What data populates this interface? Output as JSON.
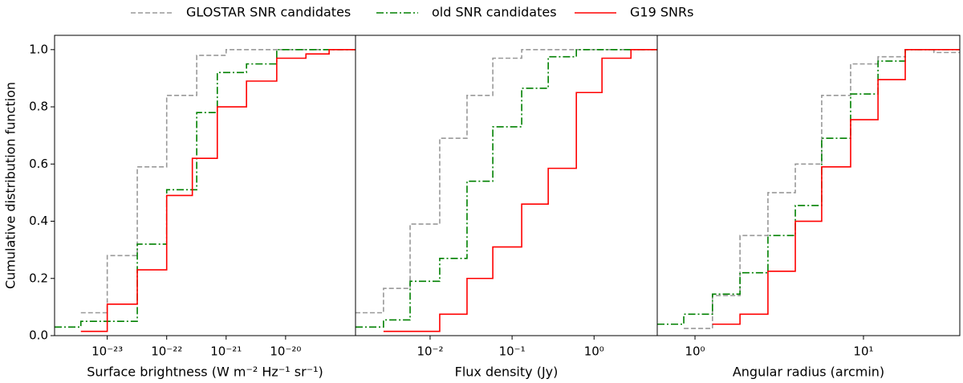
{
  "legend_loc": "upper center",
  "chart_data": [
    {
      "type": "step",
      "xscale": "log",
      "xlabel": "Surface brightness (W m⁻² Hz⁻¹ sr⁻¹)",
      "ylabel": "Cumulative distribution function",
      "xlim": [
        1.3e-24,
        1.5e-19
      ],
      "ylim": [
        0,
        1.05
      ],
      "xticks": [
        {
          "value": 1e-23,
          "label": "10⁻²³"
        },
        {
          "value": 1e-22,
          "label": "10⁻²²"
        },
        {
          "value": 1e-21,
          "label": "10⁻²¹"
        },
        {
          "value": 1e-20,
          "label": "10⁻²⁰"
        }
      ],
      "yticks": [
        {
          "value": 0,
          "label": "0.0"
        },
        0.2,
        0.4,
        0.6,
        0.8,
        {
          "value": 1,
          "label": "1.0"
        }
      ],
      "series": [
        {
          "name": "GLOSTAR SNR candidates",
          "color": "#999999",
          "linestyle": "dashed",
          "x": [
            3.6e-24,
            1e-23,
            3.2e-23,
            1e-22,
            3.2e-22,
            1e-21
          ],
          "values": [
            0.08,
            0.28,
            0.59,
            0.84,
            0.98,
            1.0
          ]
        },
        {
          "name": "old SNR candidates",
          "color": "#008000",
          "linestyle": "dashdot",
          "x": [
            1.3e-24,
            3.6e-24,
            3.2e-23,
            1e-22,
            3.2e-22,
            7.1e-22,
            2.2e-21,
            7.1e-21
          ],
          "values": [
            0.03,
            0.05,
            0.32,
            0.51,
            0.78,
            0.92,
            0.95,
            1.0
          ]
        },
        {
          "name": "G19 SNRs",
          "color": "#ff0000",
          "linestyle": "solid",
          "x": [
            3.6e-24,
            1e-23,
            3.2e-23,
            1e-22,
            2.7e-22,
            7.1e-22,
            2.2e-21,
            7.1e-21,
            2.2e-20,
            5.4e-20
          ],
          "values": [
            0.015,
            0.11,
            0.23,
            0.49,
            0.62,
            0.8,
            0.89,
            0.97,
            0.985,
            1.0
          ]
        }
      ]
    },
    {
      "type": "step",
      "xscale": "log",
      "xlabel": "Flux density (Jy)",
      "xlim": [
        0.00123,
        5.9
      ],
      "ylim": [
        0,
        1.05
      ],
      "xticks": [
        {
          "value": 0.01,
          "label": "10⁻²"
        },
        {
          "value": 0.1,
          "label": "10⁻¹"
        },
        {
          "value": 1,
          "label": "10⁰"
        }
      ],
      "series": [
        {
          "color": "#999999",
          "linestyle": "dashed",
          "x": [
            0.00123,
            0.0027,
            0.0057,
            0.0131,
            0.0282,
            0.0582,
            0.131
          ],
          "values": [
            0.08,
            0.165,
            0.39,
            0.69,
            0.84,
            0.97,
            1.0
          ]
        },
        {
          "color": "#008000",
          "linestyle": "dashdot",
          "x": [
            0.00123,
            0.0027,
            0.0057,
            0.0131,
            0.0282,
            0.0582,
            0.131,
            0.276,
            0.608
          ],
          "values": [
            0.03,
            0.055,
            0.19,
            0.27,
            0.54,
            0.73,
            0.865,
            0.975,
            1.0
          ]
        },
        {
          "color": "#ff0000",
          "linestyle": "solid",
          "x": [
            0.0027,
            0.0131,
            0.0282,
            0.0582,
            0.131,
            0.276,
            0.608,
            1.25,
            2.82
          ],
          "values": [
            0.015,
            0.075,
            0.2,
            0.31,
            0.46,
            0.585,
            0.85,
            0.97,
            1.0
          ]
        }
      ]
    },
    {
      "type": "step",
      "xscale": "log",
      "xlabel": "Angular radius (arcmin)",
      "xlim": [
        0.597,
        37.3
      ],
      "ylim": [
        0,
        1.05
      ],
      "xticks": [
        {
          "value": 1,
          "label": "10⁰"
        },
        {
          "value": 10,
          "label": "10¹"
        }
      ],
      "series": [
        {
          "color": "#999999",
          "linestyle": "dashed",
          "x": [
            0.858,
            1.27,
            1.85,
            2.71,
            3.94,
            5.65,
            8.39,
            12.2,
            17.7,
            26.2
          ],
          "values": [
            0.025,
            0.14,
            0.35,
            0.5,
            0.6,
            0.84,
            0.95,
            0.975,
            1.0,
            0.99
          ]
        },
        {
          "color": "#008000",
          "linestyle": "dashdot",
          "x": [
            0.597,
            0.858,
            1.27,
            1.85,
            2.71,
            3.94,
            5.65,
            8.39,
            12.2,
            17.7
          ],
          "values": [
            0.04,
            0.075,
            0.145,
            0.22,
            0.35,
            0.455,
            0.69,
            0.845,
            0.96,
            1.0
          ]
        },
        {
          "color": "#ff0000",
          "linestyle": "solid",
          "x": [
            1.27,
            1.85,
            2.71,
            3.94,
            5.65,
            8.39,
            12.2,
            17.7
          ],
          "values": [
            0.04,
            0.075,
            0.225,
            0.4,
            0.59,
            0.755,
            0.895,
            1.0
          ]
        }
      ]
    }
  ]
}
